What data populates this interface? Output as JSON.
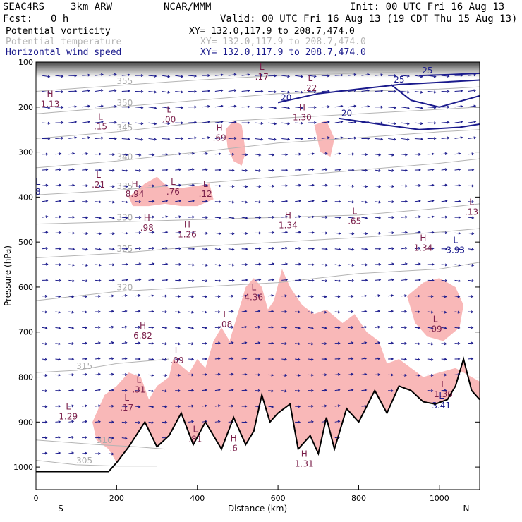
{
  "header": {
    "project": "SEAC4RS",
    "model": "3km ARW",
    "org": "NCAR/MMM",
    "init": "Init: 00 UTC Fri 16 Aug 13",
    "fcst_label": "Fcst:",
    "fcst_value": "0 h",
    "valid": "Valid: 00 UTC Fri 16 Aug 13 (19 CDT Thu 15 Aug 13)"
  },
  "legend": [
    {
      "name": "Potential vorticity",
      "xy": "XY= 132.0,117.9 to 208.7,474.0",
      "color": "#000000",
      "xy_color": "#000000"
    },
    {
      "name": "Potential temperature",
      "xy": "XY= 132.0,117.9 to 208.7,474.0",
      "color": "#b4b4b4",
      "xy_color": "#b4b4b4"
    },
    {
      "name": "Horizontal wind speed",
      "xy": "XY= 132.0,117.9 to 208.7,474.0",
      "color": "#1a1a8c",
      "xy_color": "#1a1a8c"
    }
  ],
  "colors": {
    "pv_shade": "#f9b8b8",
    "pv_contour": "#6b1d45",
    "wind": "#1a1a8c",
    "theta": "#b4b4b4",
    "terrain": "#000000"
  },
  "chart_data": {
    "type": "cross-section",
    "xlabel": "Distance (km)",
    "ylabel": "Pressure (hPa)",
    "xlim": [
      0,
      1100
    ],
    "ylim": [
      1050,
      100
    ],
    "x_ticks": [
      0,
      200,
      400,
      600,
      800,
      1000
    ],
    "y_ticks": [
      100,
      200,
      300,
      400,
      500,
      600,
      700,
      800,
      900,
      1000
    ],
    "x_end_labels": {
      "left": "S",
      "right": "N"
    },
    "terrain_pressure": [
      {
        "x": 0,
        "p": 1010
      },
      {
        "x": 180,
        "p": 1010
      },
      {
        "x": 200,
        "p": 990
      },
      {
        "x": 230,
        "p": 955
      },
      {
        "x": 270,
        "p": 900
      },
      {
        "x": 300,
        "p": 955
      },
      {
        "x": 330,
        "p": 930
      },
      {
        "x": 360,
        "p": 880
      },
      {
        "x": 390,
        "p": 950
      },
      {
        "x": 420,
        "p": 900
      },
      {
        "x": 460,
        "p": 960
      },
      {
        "x": 490,
        "p": 890
      },
      {
        "x": 520,
        "p": 950
      },
      {
        "x": 540,
        "p": 920
      },
      {
        "x": 560,
        "p": 840
      },
      {
        "x": 580,
        "p": 900
      },
      {
        "x": 600,
        "p": 880
      },
      {
        "x": 630,
        "p": 860
      },
      {
        "x": 650,
        "p": 960
      },
      {
        "x": 680,
        "p": 930
      },
      {
        "x": 700,
        "p": 970
      },
      {
        "x": 720,
        "p": 890
      },
      {
        "x": 740,
        "p": 960
      },
      {
        "x": 770,
        "p": 870
      },
      {
        "x": 800,
        "p": 900
      },
      {
        "x": 840,
        "p": 830
      },
      {
        "x": 870,
        "p": 880
      },
      {
        "x": 900,
        "p": 820
      },
      {
        "x": 930,
        "p": 830
      },
      {
        "x": 960,
        "p": 855
      },
      {
        "x": 990,
        "p": 860
      },
      {
        "x": 1020,
        "p": 850
      },
      {
        "x": 1040,
        "p": 820
      },
      {
        "x": 1060,
        "p": 760
      },
      {
        "x": 1080,
        "p": 830
      },
      {
        "x": 1100,
        "p": 850
      }
    ],
    "theta_contours": [
      {
        "label": "305",
        "points": [
          [
            0,
            985
          ],
          [
            100,
            995
          ],
          [
            200,
            998
          ],
          [
            300,
            998
          ]
        ]
      },
      {
        "label": "310",
        "points": [
          [
            0,
            940
          ],
          [
            150,
            950
          ],
          [
            250,
            955
          ],
          [
            320,
            960
          ]
        ]
      },
      {
        "label": "315",
        "points": [
          [
            0,
            790
          ],
          [
            100,
            785
          ],
          [
            200,
            770
          ],
          [
            330,
            760
          ]
        ]
      },
      {
        "label": "320",
        "points": [
          [
            0,
            630
          ],
          [
            200,
            610
          ],
          [
            400,
            600
          ],
          [
            600,
            590
          ],
          [
            800,
            570
          ],
          [
            1000,
            560
          ],
          [
            1100,
            545
          ]
        ]
      },
      {
        "label": "325",
        "points": [
          [
            0,
            535
          ],
          [
            200,
            525
          ],
          [
            400,
            510
          ],
          [
            600,
            500
          ],
          [
            800,
            490
          ],
          [
            1000,
            478
          ],
          [
            1100,
            470
          ]
        ]
      },
      {
        "label": "330",
        "points": [
          [
            0,
            460
          ],
          [
            200,
            455
          ],
          [
            400,
            450
          ],
          [
            600,
            445
          ],
          [
            800,
            440
          ],
          [
            1000,
            425
          ],
          [
            1100,
            415
          ]
        ]
      },
      {
        "label": "335",
        "points": [
          [
            0,
            395
          ],
          [
            200,
            385
          ],
          [
            400,
            370
          ],
          [
            600,
            355
          ],
          [
            800,
            340
          ],
          [
            1000,
            325
          ],
          [
            1100,
            315
          ]
        ]
      },
      {
        "label": "340",
        "points": [
          [
            0,
            335
          ],
          [
            200,
            320
          ],
          [
            400,
            300
          ],
          [
            600,
            280
          ],
          [
            800,
            268
          ],
          [
            1000,
            255
          ],
          [
            1100,
            250
          ]
        ]
      },
      {
        "label": "345",
        "points": [
          [
            0,
            270
          ],
          [
            200,
            255
          ],
          [
            400,
            235
          ],
          [
            600,
            225
          ],
          [
            800,
            215
          ],
          [
            1000,
            205
          ],
          [
            1100,
            200
          ]
        ]
      },
      {
        "label": "350",
        "points": [
          [
            0,
            215
          ],
          [
            200,
            200
          ],
          [
            400,
            185
          ],
          [
            600,
            170
          ],
          [
            800,
            165
          ],
          [
            1000,
            160
          ],
          [
            1100,
            155
          ]
        ]
      },
      {
        "label": "355",
        "points": [
          [
            0,
            165
          ],
          [
            200,
            152
          ],
          [
            400,
            140
          ],
          [
            600,
            130
          ],
          [
            800,
            125
          ],
          [
            1000,
            120
          ],
          [
            1100,
            118
          ]
        ]
      }
    ],
    "wind_speed_contours": [
      {
        "label": "20",
        "points": [
          [
            600,
            190
          ],
          [
            700,
            170
          ],
          [
            800,
            160
          ],
          [
            900,
            150
          ],
          [
            1000,
            145
          ],
          [
            1100,
            140
          ]
        ]
      },
      {
        "label": "20",
        "points": [
          [
            750,
            225
          ],
          [
            850,
            238
          ],
          [
            950,
            250
          ],
          [
            1050,
            245
          ],
          [
            1100,
            238
          ]
        ]
      },
      {
        "label": "25",
        "points": [
          [
            880,
            150
          ],
          [
            930,
            185
          ],
          [
            1000,
            200
          ],
          [
            1060,
            185
          ],
          [
            1100,
            175
          ]
        ]
      },
      {
        "label": "25",
        "points": [
          [
            950,
            130
          ],
          [
            1020,
            128
          ],
          [
            1100,
            125
          ]
        ]
      }
    ],
    "pv_extrema": [
      {
        "kind": "H",
        "value": "1.13",
        "x": 35,
        "p": 190
      },
      {
        "kind": "L",
        "value": ".15",
        "x": 160,
        "p": 240
      },
      {
        "kind": "L",
        "value": ".00",
        "x": 330,
        "p": 225
      },
      {
        "kind": "H",
        "value": ".69",
        "x": 455,
        "p": 265
      },
      {
        "kind": "H",
        "value": "1.30",
        "x": 660,
        "p": 220
      },
      {
        "kind": "L",
        "value": ".22",
        "x": 680,
        "p": 155
      },
      {
        "kind": "L",
        "value": ".17",
        "x": 560,
        "p": 130
      },
      {
        "kind": "L",
        "value": ".21",
        "x": 155,
        "p": 370
      },
      {
        "kind": "H",
        "value": "8.94",
        "x": 245,
        "p": 390
      },
      {
        "kind": "L",
        "value": ".76",
        "x": 340,
        "p": 385
      },
      {
        "kind": "L",
        "value": ".12",
        "x": 420,
        "p": 390
      },
      {
        "kind": "H",
        "value": ".98",
        "x": 275,
        "p": 465
      },
      {
        "kind": "H",
        "value": "1.26",
        "x": 375,
        "p": 480
      },
      {
        "kind": "H",
        "value": "1.34",
        "x": 625,
        "p": 460
      },
      {
        "kind": "L",
        "value": ".65",
        "x": 790,
        "p": 450
      },
      {
        "kind": "H",
        "value": "1.34",
        "x": 960,
        "p": 510
      },
      {
        "kind": "L",
        "value": ".13",
        "x": 1080,
        "p": 430
      },
      {
        "kind": "L",
        "value": "4.36",
        "x": 540,
        "p": 620
      },
      {
        "kind": "L",
        "value": ".08",
        "x": 470,
        "p": 680
      },
      {
        "kind": "H",
        "value": "6.82",
        "x": 265,
        "p": 705
      },
      {
        "kind": "L",
        "value": ".09",
        "x": 350,
        "p": 760
      },
      {
        "kind": "L",
        "value": ".31",
        "x": 255,
        "p": 825
      },
      {
        "kind": "L",
        "value": ".17",
        "x": 225,
        "p": 865
      },
      {
        "kind": "L",
        "value": "1.29",
        "x": 80,
        "p": 885
      },
      {
        "kind": "L",
        "value": ".81",
        "x": 395,
        "p": 935
      },
      {
        "kind": "H",
        "value": ".6",
        "x": 490,
        "p": 955
      },
      {
        "kind": "H",
        "value": "1.31",
        "x": 665,
        "p": 990
      },
      {
        "kind": "L",
        "value": ".09",
        "x": 990,
        "p": 690
      },
      {
        "kind": "L",
        "value": "1.30",
        "x": 1010,
        "p": 835
      }
    ],
    "ws_extrema": [
      {
        "kind": "L",
        "value": "3.93",
        "x": 1040,
        "p": 515
      },
      {
        "kind": "L",
        "value": "3.41",
        "x": 1005,
        "p": 860
      },
      {
        "kind": "L",
        "value": "8",
        "x": 5,
        "p": 385
      }
    ],
    "pv_shaded_regions": [
      {
        "points": [
          [
            140,
            900
          ],
          [
            170,
            840
          ],
          [
            200,
            820
          ],
          [
            230,
            790
          ],
          [
            260,
            800
          ],
          [
            280,
            850
          ],
          [
            300,
            820
          ],
          [
            330,
            800
          ],
          [
            340,
            760
          ],
          [
            380,
            790
          ],
          [
            400,
            760
          ],
          [
            420,
            780
          ],
          [
            440,
            720
          ],
          [
            460,
            690
          ],
          [
            480,
            720
          ],
          [
            500,
            660
          ],
          [
            520,
            600
          ],
          [
            540,
            580
          ],
          [
            560,
            600
          ],
          [
            575,
            650
          ],
          [
            590,
            630
          ],
          [
            610,
            560
          ],
          [
            630,
            600
          ],
          [
            660,
            640
          ],
          [
            690,
            660
          ],
          [
            720,
            650
          ],
          [
            760,
            680
          ],
          [
            790,
            660
          ],
          [
            820,
            700
          ],
          [
            850,
            720
          ],
          [
            870,
            770
          ],
          [
            900,
            760
          ],
          [
            930,
            780
          ],
          [
            960,
            800
          ],
          [
            1000,
            790
          ],
          [
            1040,
            780
          ],
          [
            1080,
            800
          ],
          [
            1100,
            810
          ],
          [
            1100,
            850
          ],
          [
            1080,
            830
          ],
          [
            1060,
            760
          ],
          [
            1040,
            820
          ],
          [
            1020,
            850
          ],
          [
            990,
            860
          ],
          [
            960,
            855
          ],
          [
            930,
            830
          ],
          [
            900,
            820
          ],
          [
            870,
            880
          ],
          [
            840,
            830
          ],
          [
            800,
            900
          ],
          [
            770,
            870
          ],
          [
            740,
            960
          ],
          [
            720,
            890
          ],
          [
            700,
            970
          ],
          [
            680,
            930
          ],
          [
            650,
            960
          ],
          [
            630,
            860
          ],
          [
            600,
            880
          ],
          [
            580,
            900
          ],
          [
            560,
            840
          ],
          [
            540,
            920
          ],
          [
            520,
            950
          ],
          [
            490,
            890
          ],
          [
            460,
            960
          ],
          [
            420,
            900
          ],
          [
            390,
            950
          ],
          [
            360,
            880
          ],
          [
            330,
            930
          ],
          [
            300,
            955
          ],
          [
            270,
            900
          ],
          [
            230,
            955
          ],
          [
            200,
            990
          ],
          [
            180,
            960
          ],
          [
            150,
            940
          ]
        ]
      },
      {
        "points": [
          [
            230,
            400
          ],
          [
            270,
            370
          ],
          [
            300,
            355
          ],
          [
            330,
            380
          ],
          [
            360,
            380
          ],
          [
            400,
            375
          ],
          [
            430,
            370
          ],
          [
            440,
            405
          ],
          [
            400,
            420
          ],
          [
            360,
            420
          ],
          [
            320,
            415
          ],
          [
            280,
            420
          ],
          [
            240,
            420
          ]
        ]
      },
      {
        "points": [
          [
            920,
            620
          ],
          [
            960,
            590
          ],
          [
            1000,
            580
          ],
          [
            1040,
            600
          ],
          [
            1060,
            640
          ],
          [
            1050,
            690
          ],
          [
            1010,
            720
          ],
          [
            970,
            710
          ],
          [
            940,
            680
          ]
        ]
      },
      {
        "points": [
          [
            470,
            250
          ],
          [
            490,
            230
          ],
          [
            510,
            240
          ],
          [
            520,
            300
          ],
          [
            510,
            330
          ],
          [
            490,
            320
          ],
          [
            475,
            290
          ]
        ]
      },
      {
        "points": [
          [
            690,
            240
          ],
          [
            720,
            230
          ],
          [
            740,
            270
          ],
          [
            730,
            310
          ],
          [
            705,
            300
          ]
        ]
      }
    ],
    "wind_vectors": {
      "x_spacing_km": 33,
      "p_spacing_hpa": 35
    }
  }
}
